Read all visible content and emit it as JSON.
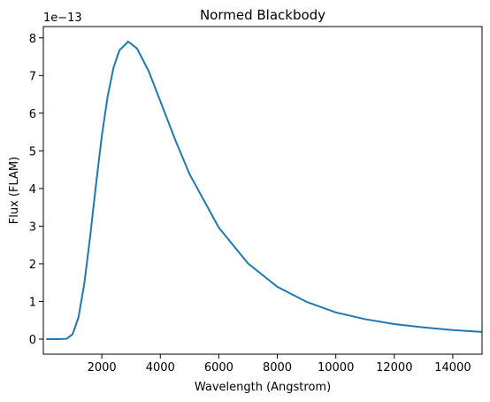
{
  "chart_data": {
    "type": "line",
    "title": "Normed Blackbody",
    "x_label": "Wavelength (Angstrom)",
    "y_label": "Flux (FLAM)",
    "y_offset_text": "1e−13",
    "x": [
      100,
      500,
      800,
      1000,
      1200,
      1400,
      1600,
      1800,
      2000,
      2200,
      2400,
      2600,
      2900,
      3200,
      3600,
      4000,
      4500,
      5000,
      6000,
      7000,
      8000,
      9000,
      10000,
      11000,
      12000,
      13000,
      14000,
      15000
    ],
    "series": [
      {
        "name": "Blackbody",
        "color": "#1f77b4",
        "values": [
          0,
          0,
          0.01,
          0.13,
          0.57,
          1.47,
          2.72,
          4.1,
          5.4,
          6.45,
          7.21,
          7.67,
          7.9,
          7.72,
          7.12,
          6.32,
          5.31,
          4.38,
          2.96,
          2.01,
          1.39,
          0.99,
          0.71,
          0.53,
          0.4,
          0.31,
          0.24,
          0.19
        ]
      }
    ],
    "xlim": [
      0,
      15000
    ],
    "ylim": [
      -0.4,
      8.3
    ],
    "xticks": [
      2000,
      4000,
      6000,
      8000,
      10000,
      12000,
      14000
    ],
    "yticks": [
      0,
      1,
      2,
      3,
      4,
      5,
      6,
      7,
      8
    ],
    "grid": false
  }
}
